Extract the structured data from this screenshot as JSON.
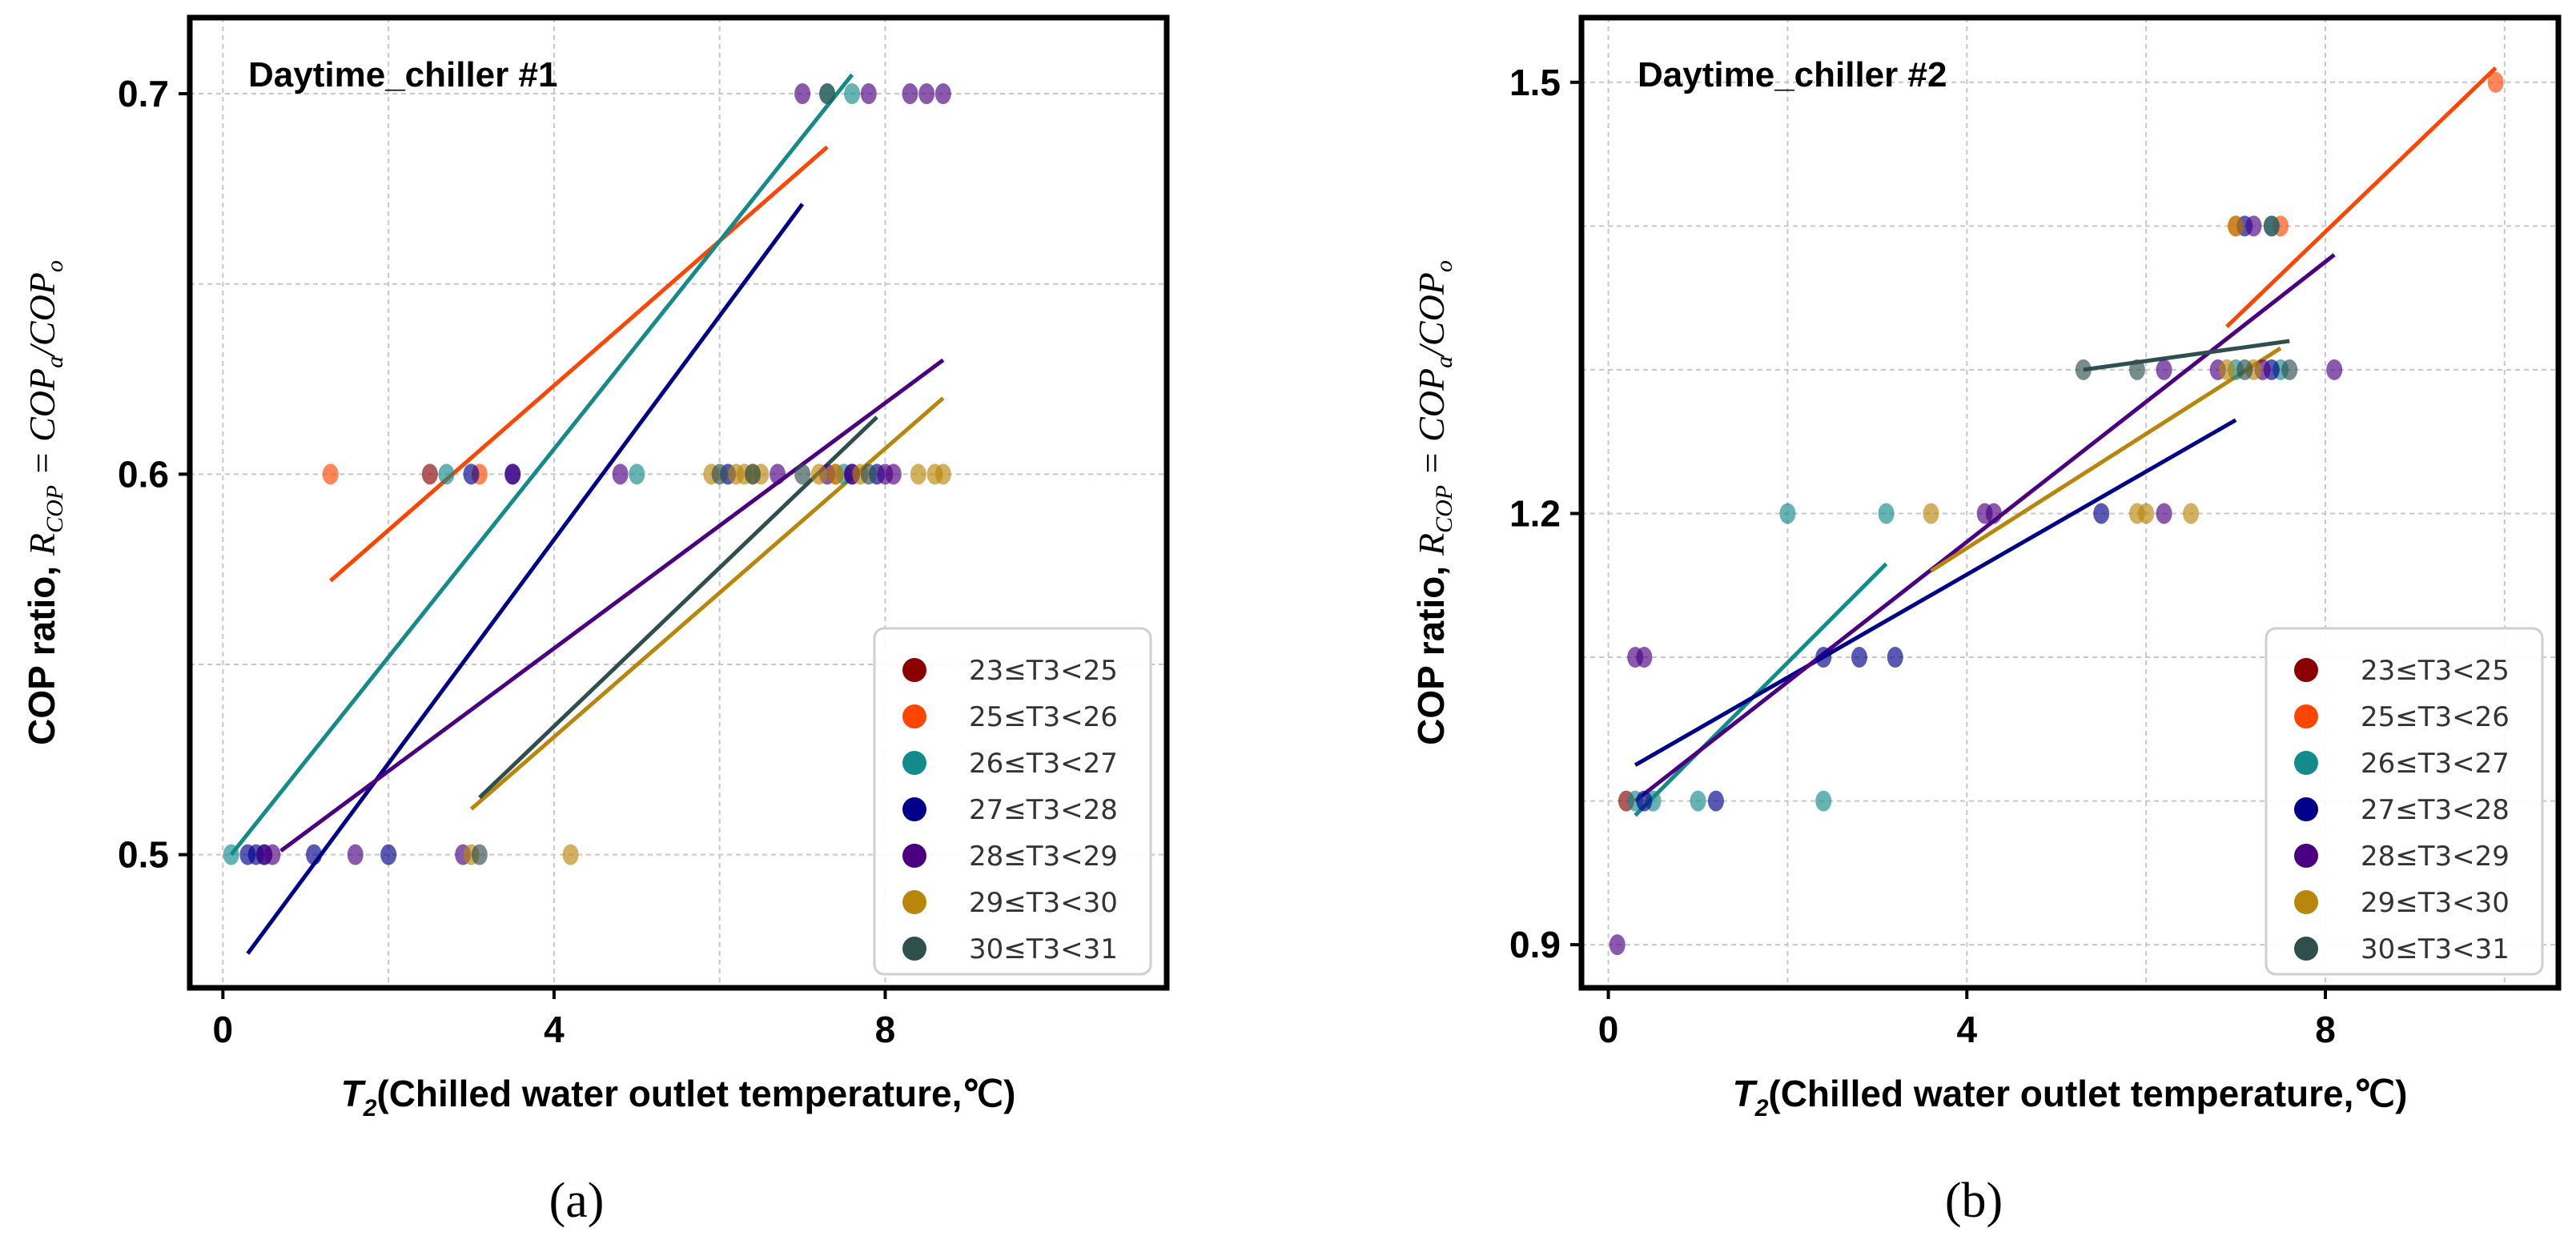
{
  "chart_data": [
    {
      "type": "scatter",
      "title": "Daytime_chiller #1",
      "panel_label": "(a)",
      "xlabel": "T₂(Chilled water outlet temperature,℃)",
      "xlabel_main": "T",
      "xlabel_sub": "2",
      "xlabel_rest": "(Chilled water outlet temperature,℃)",
      "ylabel": "COP ratio, R_COP = COP_a/COP_o",
      "ylabel_main": "COP ratio, ",
      "ylabel_formula": "R",
      "ylabel_formula_sub": "COP",
      "ylabel_formula_eq": " = COP",
      "ylabel_formula_sub2": "a",
      "ylabel_formula_div": "/COP",
      "ylabel_formula_sub3": "o",
      "xlim": [
        -0.4,
        11.4
      ],
      "ylim": [
        0.465,
        0.72
      ],
      "xticks": [
        0,
        4,
        8
      ],
      "xtick_labels": [
        "0",
        "4",
        "8"
      ],
      "xgrid": [
        0,
        2,
        4,
        6,
        8
      ],
      "yticks": [
        0.5,
        0.6,
        0.7
      ],
      "ytick_labels": [
        "0.5",
        "0.6",
        "0.7"
      ],
      "ygrid": [
        0.5,
        0.55,
        0.6,
        0.65,
        0.7
      ],
      "legend_position": "lower-right",
      "series": [
        {
          "name": "23≤T3<25",
          "color": "#8b0000",
          "points": [
            [
              2.5,
              0.6
            ]
          ],
          "fit": []
        },
        {
          "name": "25≤T3<26",
          "color": "#ff4500",
          "points": [
            [
              1.3,
              0.6
            ],
            [
              3.1,
              0.6
            ],
            [
              7.4,
              0.6
            ]
          ],
          "fit": [
            [
              1.3,
              0.572
            ],
            [
              7.3,
              0.686
            ]
          ]
        },
        {
          "name": "26≤T3<27",
          "color": "#138b8b",
          "points": [
            [
              0.1,
              0.5
            ],
            [
              2.7,
              0.6
            ],
            [
              5.0,
              0.6
            ],
            [
              7.3,
              0.7
            ],
            [
              7.6,
              0.7
            ],
            [
              7.5,
              0.6
            ]
          ],
          "fit": [
            [
              0.1,
              0.5
            ],
            [
              7.6,
              0.705
            ]
          ]
        },
        {
          "name": "27≤T3<28",
          "color": "#00008b",
          "points": [
            [
              0.3,
              0.5
            ],
            [
              0.4,
              0.5
            ],
            [
              0.5,
              0.5
            ],
            [
              1.1,
              0.5
            ],
            [
              2.0,
              0.5
            ],
            [
              3.0,
              0.6
            ],
            [
              3.5,
              0.6
            ],
            [
              6.1,
              0.6
            ],
            [
              7.6,
              0.6
            ],
            [
              7.9,
              0.6
            ]
          ],
          "fit": [
            [
              0.3,
              0.474
            ],
            [
              7.0,
              0.671
            ]
          ]
        },
        {
          "name": "28≤T3<29",
          "color": "#4b0082",
          "points": [
            [
              0.5,
              0.5
            ],
            [
              0.6,
              0.5
            ],
            [
              1.6,
              0.5
            ],
            [
              2.9,
              0.5
            ],
            [
              3.5,
              0.6
            ],
            [
              4.8,
              0.6
            ],
            [
              6.7,
              0.6
            ],
            [
              7.0,
              0.7
            ],
            [
              7.8,
              0.7
            ],
            [
              8.3,
              0.7
            ],
            [
              8.5,
              0.7
            ],
            [
              8.7,
              0.7
            ],
            [
              7.3,
              0.6
            ],
            [
              7.6,
              0.6
            ],
            [
              8.0,
              0.6
            ],
            [
              8.1,
              0.6
            ]
          ],
          "fit": [
            [
              0.7,
              0.501
            ],
            [
              8.7,
              0.63
            ]
          ]
        },
        {
          "name": "29≤T3<30",
          "color": "#b8860b",
          "points": [
            [
              3.0,
              0.5
            ],
            [
              4.2,
              0.5
            ],
            [
              5.9,
              0.6
            ],
            [
              6.2,
              0.6
            ],
            [
              6.3,
              0.6
            ],
            [
              6.4,
              0.6
            ],
            [
              6.5,
              0.6
            ],
            [
              7.2,
              0.6
            ],
            [
              7.4,
              0.6
            ],
            [
              7.7,
              0.6
            ],
            [
              8.4,
              0.6
            ],
            [
              8.6,
              0.6
            ],
            [
              8.7,
              0.6
            ]
          ],
          "fit": [
            [
              3.0,
              0.512
            ],
            [
              8.7,
              0.62
            ]
          ]
        },
        {
          "name": "30≤T3<31",
          "color": "#2f4f4f",
          "points": [
            [
              3.1,
              0.5
            ],
            [
              6.0,
              0.6
            ],
            [
              6.4,
              0.6
            ],
            [
              7.0,
              0.6
            ],
            [
              7.3,
              0.7
            ],
            [
              7.8,
              0.6
            ]
          ],
          "fit": [
            [
              3.1,
              0.515
            ],
            [
              7.9,
              0.615
            ]
          ]
        }
      ]
    },
    {
      "type": "scatter",
      "title": "Daytime_chiller #2",
      "panel_label": "(b)",
      "xlabel": "T₂(Chilled water outlet temperature,℃)",
      "xlabel_main": "T",
      "xlabel_sub": "2",
      "xlabel_rest": "(Chilled water outlet temperature,℃)",
      "ylabel": "COP ratio, R_COP = COP_a/COP_o",
      "ylabel_main": "COP ratio, ",
      "ylabel_formula": "R",
      "ylabel_formula_sub": "COP",
      "ylabel_formula_eq": " = COP",
      "ylabel_formula_sub2": "a",
      "ylabel_formula_div": "/COP",
      "ylabel_formula_sub3": "o",
      "xlim": [
        -0.3,
        10.6
      ],
      "ylim": [
        0.87,
        1.545
      ],
      "xticks": [
        0,
        4,
        8
      ],
      "xtick_labels": [
        "0",
        "4",
        "8"
      ],
      "xgrid": [
        0,
        2,
        4,
        6,
        8,
        10
      ],
      "yticks": [
        0.9,
        1.2,
        1.5
      ],
      "ytick_labels": [
        "0.9",
        "1.2",
        "1.5"
      ],
      "ygrid": [
        0.9,
        1.0,
        1.1,
        1.2,
        1.3,
        1.4,
        1.5
      ],
      "legend_position": "lower-right",
      "series": [
        {
          "name": "23≤T3<25",
          "color": "#8b0000",
          "points": [
            [
              0.2,
              1.0
            ]
          ],
          "fit": []
        },
        {
          "name": "25≤T3<26",
          "color": "#ff4500",
          "points": [
            [
              7.0,
              1.4
            ],
            [
              7.5,
              1.4
            ],
            [
              9.9,
              1.5
            ]
          ],
          "fit": [
            [
              6.9,
              1.33
            ],
            [
              9.9,
              1.51
            ]
          ]
        },
        {
          "name": "26≤T3<27",
          "color": "#138b8b",
          "points": [
            [
              0.3,
              1.0
            ],
            [
              0.5,
              1.0
            ],
            [
              1.0,
              1.0
            ],
            [
              2.0,
              1.2
            ],
            [
              2.4,
              1.0
            ],
            [
              3.1,
              1.2
            ],
            [
              7.0,
              1.3
            ],
            [
              7.4,
              1.4
            ],
            [
              7.5,
              1.3
            ]
          ],
          "fit": [
            [
              0.3,
              0.99
            ],
            [
              3.1,
              1.165
            ]
          ]
        },
        {
          "name": "27≤T3<28",
          "color": "#00008b",
          "points": [
            [
              0.4,
              1.0
            ],
            [
              1.2,
              1.0
            ],
            [
              2.4,
              1.1
            ],
            [
              2.8,
              1.1
            ],
            [
              3.2,
              1.1
            ],
            [
              5.5,
              1.2
            ],
            [
              7.1,
              1.4
            ],
            [
              7.4,
              1.3
            ]
          ],
          "fit": [
            [
              0.3,
              1.025
            ],
            [
              7.0,
              1.265
            ]
          ]
        },
        {
          "name": "28≤T3<29",
          "color": "#4b0082",
          "points": [
            [
              0.1,
              0.9
            ],
            [
              0.3,
              1.1
            ],
            [
              0.4,
              1.1
            ],
            [
              4.2,
              1.2
            ],
            [
              4.3,
              1.2
            ],
            [
              6.2,
              1.2
            ],
            [
              6.2,
              1.3
            ],
            [
              6.8,
              1.3
            ],
            [
              7.2,
              1.4
            ],
            [
              7.3,
              1.3
            ],
            [
              8.1,
              1.3
            ]
          ],
          "fit": [
            [
              0.3,
              1.0
            ],
            [
              8.1,
              1.38
            ]
          ]
        },
        {
          "name": "29≤T3<30",
          "color": "#b8860b",
          "points": [
            [
              3.6,
              1.2
            ],
            [
              5.9,
              1.2
            ],
            [
              6.0,
              1.2
            ],
            [
              6.5,
              1.2
            ],
            [
              6.9,
              1.3
            ],
            [
              7.0,
              1.4
            ],
            [
              7.2,
              1.3
            ]
          ],
          "fit": [
            [
              3.6,
              1.16
            ],
            [
              7.5,
              1.315
            ]
          ]
        },
        {
          "name": "30≤T3<31",
          "color": "#2f4f4f",
          "points": [
            [
              5.3,
              1.3
            ],
            [
              5.9,
              1.3
            ],
            [
              7.1,
              1.3
            ],
            [
              7.4,
              1.4
            ],
            [
              7.6,
              1.3
            ]
          ],
          "fit": [
            [
              5.3,
              1.3
            ],
            [
              7.6,
              1.32
            ]
          ]
        }
      ]
    }
  ]
}
